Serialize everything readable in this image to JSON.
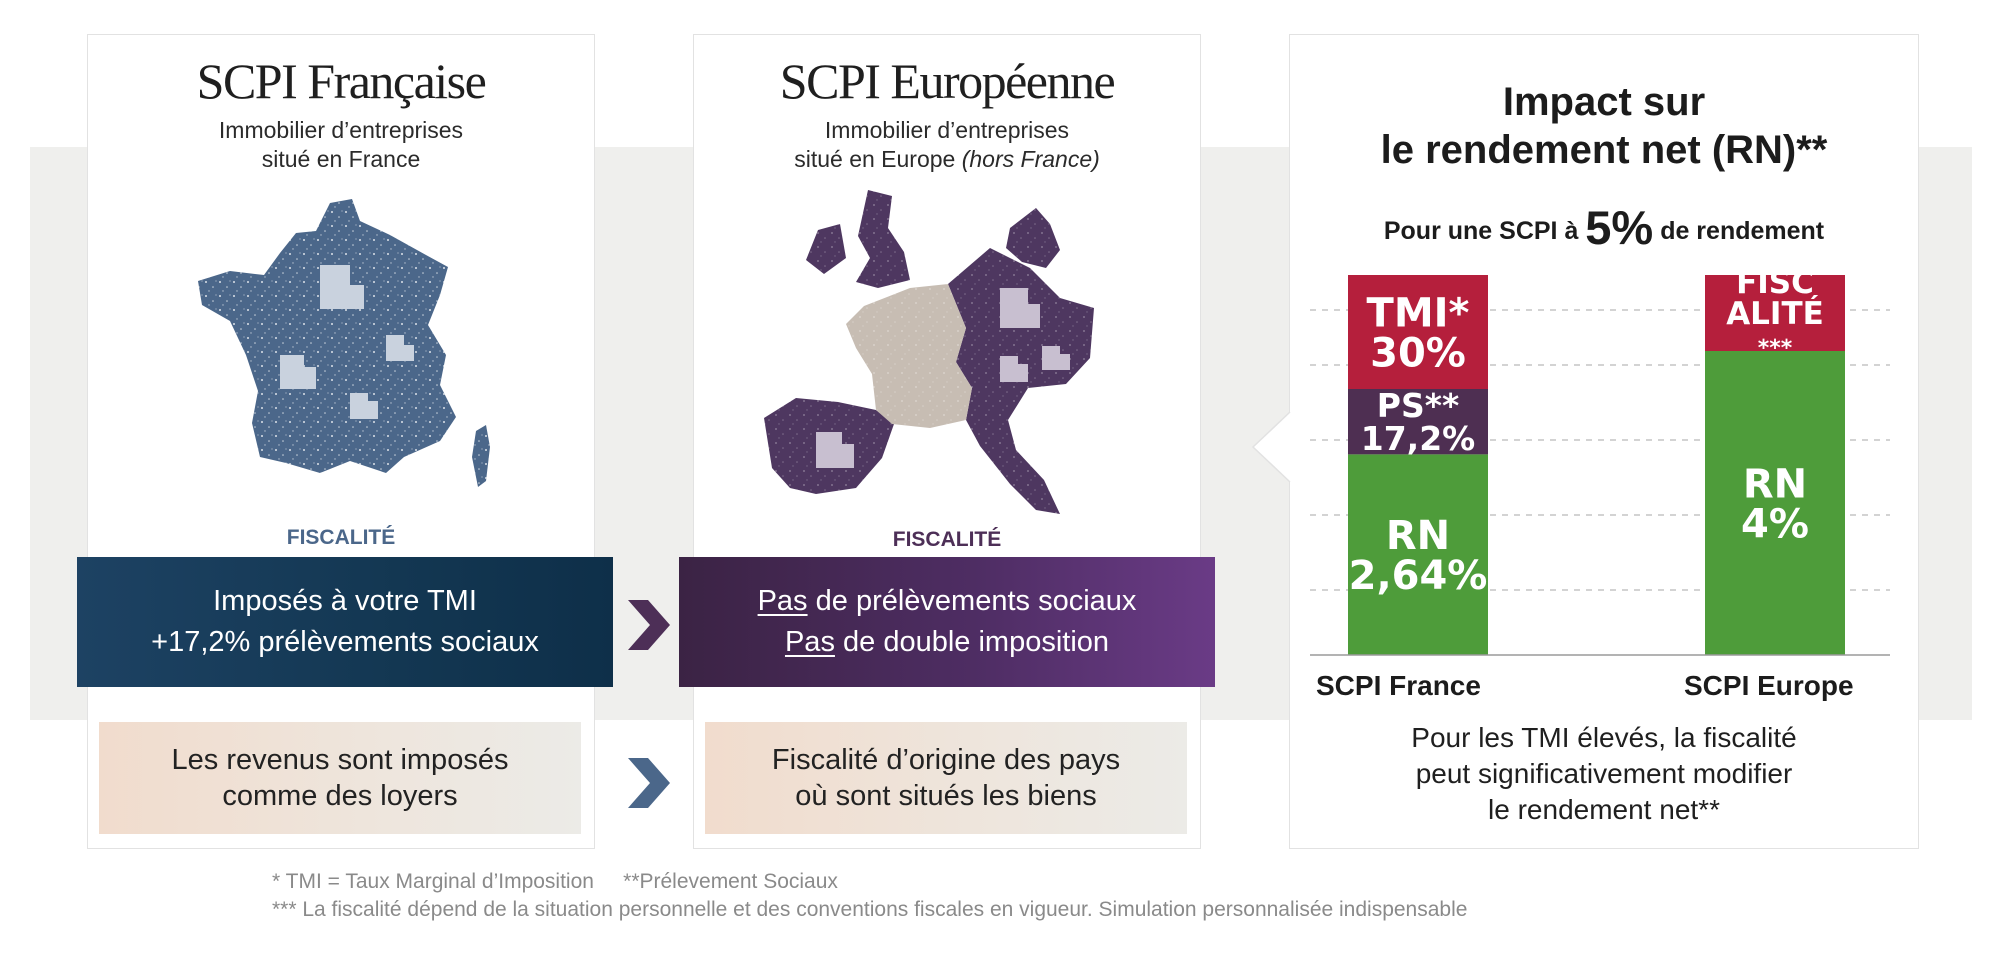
{
  "france": {
    "title": "SCPI Française",
    "subtitle_1": "Immobilier d’entreprises",
    "subtitle_2": "situé en France",
    "fiscalite_label": "FISCALITÉ",
    "tax_line_1": "Imposés à votre TMI",
    "tax_line_2": "+17,2% prélèvements sociaux",
    "note_line_1": "Les revenus sont imposés",
    "note_line_2": "comme des loyers",
    "map_color": "#4b678a"
  },
  "europe": {
    "title": "SCPI Européenne",
    "subtitle_1": "Immobilier d’entreprises",
    "subtitle_2": "situé en Europe",
    "subtitle_2_italic": "(hors France)",
    "fiscalite_label": "FISCALITÉ",
    "tax_line_1_underlined": "Pas",
    "tax_line_1_rest": "de prélèvements sociaux",
    "tax_line_2_underlined": "Pas",
    "tax_line_2_rest": "de double imposition",
    "note_line_1": "Fiscalité d’origine des pays",
    "note_line_2": "où sont situés les biens",
    "map_color": "#4e3760",
    "france_color": "#c7bdb3"
  },
  "impact": {
    "title_1": "Impact sur",
    "title_2": "le rendement net (RN)**",
    "rate_prefix": "Pour une SCPI à",
    "rate_value": "5%",
    "rate_suffix": "de rendement",
    "conclusion_1": "Pour les TMI élevés, la fiscalité",
    "conclusion_2": "peut significativement modifier",
    "conclusion_3": "le rendement net**"
  },
  "chart_data": {
    "type": "bar",
    "stacked": true,
    "categories": [
      "SCPI France",
      "SCPI Europe"
    ],
    "total": 5,
    "segments": [
      {
        "category": "SCPI France",
        "lines": [
          "RN",
          "2,64%"
        ],
        "value": 2.64,
        "color": "#4e9c3a"
      },
      {
        "category": "SCPI France",
        "lines": [
          "PS**",
          "17,2%"
        ],
        "value": 0.86,
        "color": "#4e2f52"
      },
      {
        "category": "SCPI France",
        "lines": [
          "TMI*",
          "30%"
        ],
        "value": 1.5,
        "color": "#b51f3c"
      },
      {
        "category": "SCPI Europe",
        "lines": [
          "RN",
          "4%"
        ],
        "value": 4.0,
        "color": "#4e9c3a"
      },
      {
        "category": "SCPI Europe",
        "lines": [
          "FISC",
          "ALITÉ",
          "***"
        ],
        "value": 1.0,
        "color": "#b51f3c"
      }
    ],
    "grid": "dashed horizontal"
  },
  "arrows": {
    "color_dark": "#4d2f57",
    "color_blue": "#4b678a"
  },
  "footnotes": {
    "line_1a": "*  TMI = Taux Marginal d’Imposition",
    "line_1b": "**Prélevement Sociaux",
    "line_2": "*** La fiscalité dépend de la situation personnelle et des conventions fiscales en vigueur. Simulation personnalisée indispensable"
  }
}
